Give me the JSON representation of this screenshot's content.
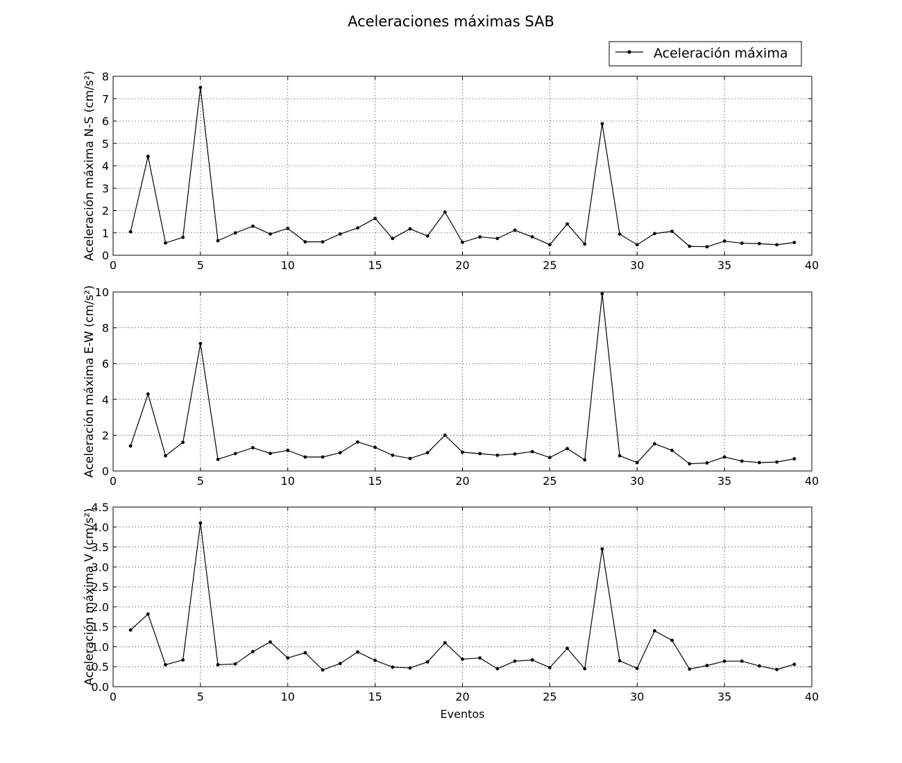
{
  "chart_data": {
    "type": "line",
    "title": "Aceleraciones máximas SAB",
    "legend": {
      "entry": "Aceleración máxima",
      "placement": "top-right"
    },
    "grid": true,
    "x": [
      1,
      2,
      3,
      4,
      5,
      6,
      7,
      8,
      9,
      10,
      11,
      12,
      13,
      14,
      15,
      16,
      17,
      18,
      19,
      20,
      21,
      22,
      23,
      24,
      25,
      26,
      27,
      28,
      29,
      30,
      31,
      32,
      33,
      34,
      35,
      36,
      37,
      38,
      39
    ],
    "panels": [
      {
        "ylabel": "Aceleración máxima N-S (cm/s²)",
        "xlabel": "",
        "xlim": [
          0,
          40
        ],
        "ylim": [
          0,
          8
        ],
        "xticks": [
          "0",
          "5",
          "10",
          "15",
          "20",
          "25",
          "30",
          "35",
          "40"
        ],
        "yticks": [
          "0",
          "1",
          "2",
          "3",
          "4",
          "5",
          "6",
          "7",
          "8"
        ],
        "series": [
          {
            "name": "Aceleración máxima",
            "values": [
              1.05,
              4.42,
              0.55,
              0.8,
              7.5,
              0.65,
              1.0,
              1.3,
              0.95,
              1.2,
              0.6,
              0.6,
              0.95,
              1.22,
              1.65,
              0.75,
              1.18,
              0.86,
              1.93,
              0.58,
              0.82,
              0.75,
              1.12,
              0.82,
              0.47,
              1.4,
              0.5,
              5.88,
              0.95,
              0.47,
              0.97,
              1.07,
              0.4,
              0.38,
              0.63,
              0.54,
              0.52,
              0.47,
              0.57
            ]
          }
        ]
      },
      {
        "ylabel": "Aceleración máxima E-W (cm/s²)",
        "xlabel": "",
        "xlim": [
          0,
          40
        ],
        "ylim": [
          0,
          10
        ],
        "xticks": [
          "0",
          "5",
          "10",
          "15",
          "20",
          "25",
          "30",
          "35",
          "40"
        ],
        "yticks": [
          "0",
          "2",
          "4",
          "6",
          "8",
          "10"
        ],
        "series": [
          {
            "name": "Aceleración máxima",
            "values": [
              1.4,
              4.3,
              0.85,
              1.6,
              7.12,
              0.65,
              0.97,
              1.3,
              0.98,
              1.15,
              0.78,
              0.78,
              1.02,
              1.62,
              1.32,
              0.88,
              0.7,
              1.02,
              2.0,
              1.05,
              0.97,
              0.88,
              0.95,
              1.08,
              0.75,
              1.25,
              0.62,
              9.9,
              0.85,
              0.47,
              1.52,
              1.15,
              0.4,
              0.45,
              0.78,
              0.55,
              0.47,
              0.5,
              0.68
            ]
          }
        ]
      },
      {
        "ylabel": "Aceleración máxima V (cm/s²)",
        "xlabel": "Eventos",
        "xlim": [
          0,
          40
        ],
        "ylim": [
          0,
          4.5
        ],
        "xticks": [
          "0",
          "5",
          "10",
          "15",
          "20",
          "25",
          "30",
          "35",
          "40"
        ],
        "yticks": [
          "0.0",
          "0.5",
          "1.0",
          "1.5",
          "2.0",
          "2.5",
          "3.0",
          "3.5",
          "4.0",
          "4.5"
        ],
        "series": [
          {
            "name": "Aceleración máxima",
            "values": [
              1.42,
              1.82,
              0.55,
              0.67,
              4.1,
              0.55,
              0.57,
              0.88,
              1.12,
              0.72,
              0.85,
              0.42,
              0.58,
              0.87,
              0.66,
              0.49,
              0.47,
              0.62,
              1.1,
              0.69,
              0.72,
              0.45,
              0.64,
              0.67,
              0.48,
              0.96,
              0.45,
              3.45,
              0.65,
              0.46,
              1.4,
              1.16,
              0.44,
              0.53,
              0.64,
              0.64,
              0.52,
              0.43,
              0.56
            ]
          }
        ]
      }
    ]
  }
}
